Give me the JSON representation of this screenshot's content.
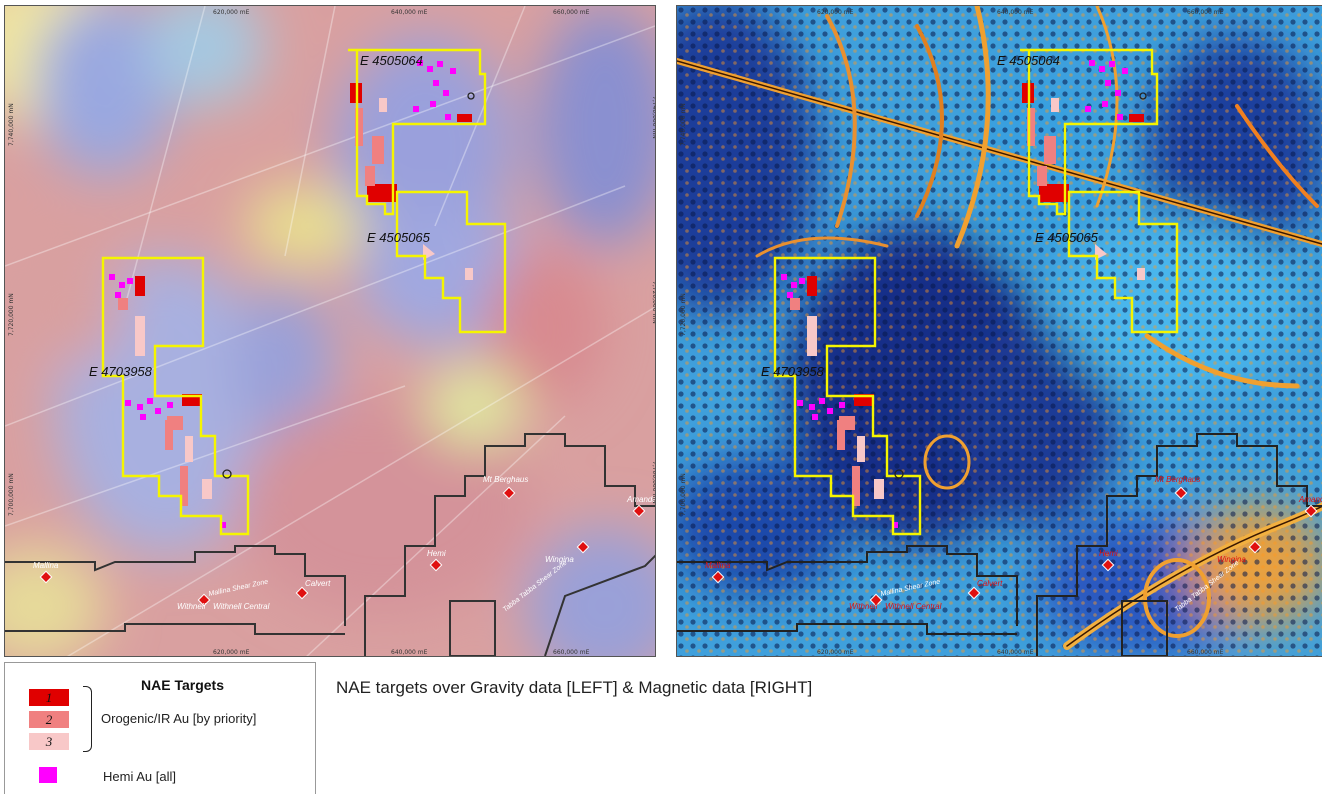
{
  "maps": [
    {
      "id": "gravity",
      "tenements": [
        "E 4505064",
        "E 4505065",
        "E 4703958"
      ],
      "localities": [
        "Mt Berghaus",
        "Amanda",
        "Hemi",
        "Wingina",
        "Mallina",
        "Withnell",
        "Withnell Central",
        "Calvert"
      ],
      "shear_zones": [
        "Mallina Shear Zone",
        "Tabba Tabba Shear Zone"
      ],
      "easting_labels": [
        "620,000 mE",
        "640,000 mE",
        "660,000 mE"
      ],
      "northing_labels": [
        "7,740,000 mN",
        "7,720,000 mN",
        "7,700,000 mN"
      ]
    },
    {
      "id": "magnetic",
      "tenements": [
        "E 4505064",
        "E 4505065",
        "E 4703958"
      ],
      "localities": [
        "Mt Berghaus",
        "Amanda",
        "Hemi",
        "Wingina",
        "Mallina",
        "Withnell",
        "Withnell Central",
        "Calvert"
      ],
      "shear_zones": [
        "Mallina Shear Zone",
        "Tabba Tabba Shear Zone"
      ],
      "easting_labels": [
        "620,000 mE",
        "640,000 mE",
        "660,000 mE"
      ],
      "northing_labels": [
        "7,740,000 mN",
        "7,720,000 mN",
        "7,700,000 mN"
      ]
    }
  ],
  "legend": {
    "title": "NAE Targets",
    "priorities": [
      "1",
      "2",
      "3"
    ],
    "orogenic_label": "Orogenic/IR Au [by priority]",
    "hemi_label": "Hemi Au [all]",
    "colors": {
      "priority_1": "#e00000",
      "priority_2": "#f08080",
      "priority_3": "#f8c8c8",
      "hemi": "#ff00ff"
    }
  },
  "caption": "NAE targets over Gravity data [LEFT] & Magnetic data [RIGHT]"
}
